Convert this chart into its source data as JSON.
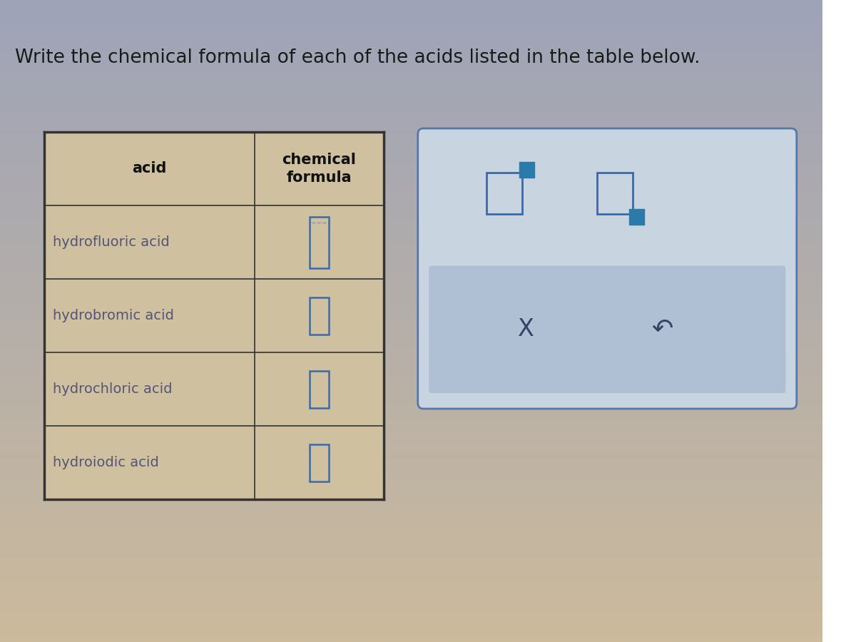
{
  "title": "Write the chemical formula of each of the acids listed in the table below.",
  "title_fontsize": 19,
  "title_color": "#1a1a1a",
  "bg_top_color": "#9aa0b0",
  "bg_bottom_color": "#c8b898",
  "table_bg": "#cfc0a0",
  "table_border_color": "#333333",
  "header_text_color": "#111111",
  "acids": [
    "hydrofluoric acid",
    "hydrobromic acid",
    "hydrochloric acid",
    "hydroiodic acid"
  ],
  "acid_text_color": "#555577",
  "col1_header": "acid",
  "col2_header": "chemical\nformula",
  "input_box_color": "#3a6aaa",
  "input_box_color2": "#5588cc",
  "icon_box_color": "#3a6aaa",
  "icon_fill_color": "#2a7aaa",
  "popup_border": "#5577aa",
  "popup_bg": "#c8d4e0",
  "popup_inner_bg": "#b0c0d4",
  "action_text_color": "#334466",
  "undo_char": "↶"
}
